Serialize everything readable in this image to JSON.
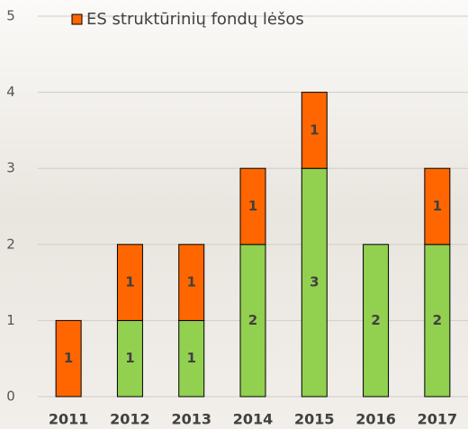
{
  "chart_data": {
    "type": "stacked-bar",
    "categories": [
      "2011",
      "2012",
      "2013",
      "2014",
      "2015",
      "2016",
      "2017"
    ],
    "series": [
      {
        "color": "#92d050",
        "values": [
          null,
          1,
          1,
          2,
          3,
          2,
          2
        ]
      },
      {
        "name": "ES struktūrinių fondų lėšos",
        "color": "#ff6600",
        "values": [
          1,
          1,
          1,
          1,
          1,
          null,
          1
        ]
      }
    ],
    "ylim": [
      0,
      5
    ],
    "yticks": [
      0,
      1,
      2,
      3,
      4,
      5
    ],
    "grid": true,
    "legend": "top"
  }
}
